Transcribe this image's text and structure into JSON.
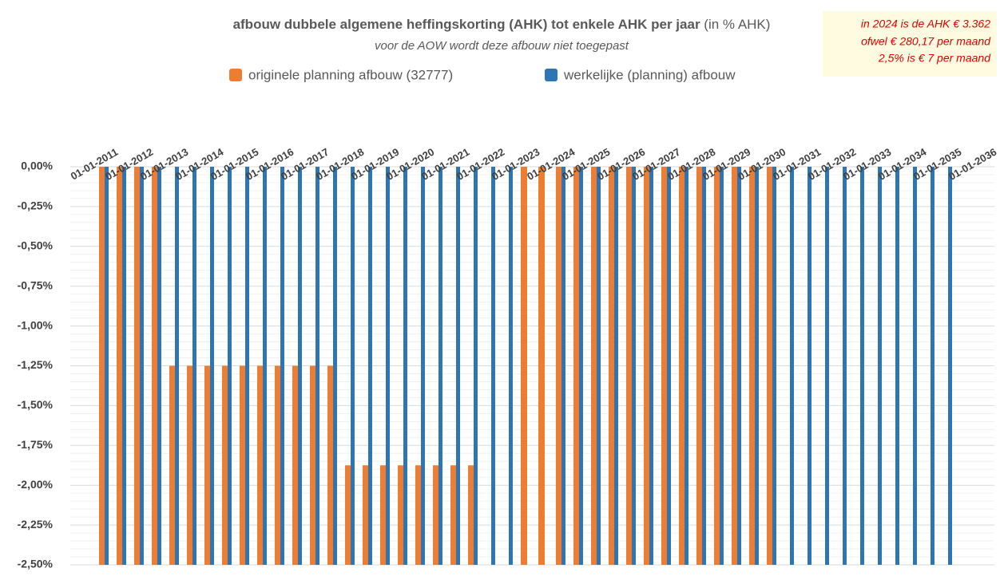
{
  "chart_data": {
    "type": "bar",
    "title": "afbouw dubbele algemene heffingskorting (AHK) tot enkele AHK per jaar",
    "title_suffix": "(in % AHK)",
    "subtitle": "voor de AOW wordt deze afbouw niet toegepast",
    "annotations": [
      "in 2024 is de AHK € 3.362",
      "ofwel € 280,17 per maand",
      "2,5% is € 7 per maand"
    ],
    "categories": [
      "01-01-2011",
      null,
      "01-01-2012",
      null,
      "01-01-2013",
      null,
      "01-01-2014",
      null,
      "01-01-2015",
      null,
      "01-01-2016",
      null,
      "01-01-2017",
      null,
      "01-01-2018",
      null,
      "01-01-2019",
      null,
      "01-01-2020",
      null,
      "01-01-2021",
      null,
      "01-01-2022",
      null,
      "01-01-2023",
      null,
      "01-01-2024",
      null,
      "01-01-2025",
      null,
      "01-01-2026",
      null,
      "01-01-2027",
      null,
      "01-01-2028",
      null,
      "01-01-2029",
      null,
      "01-01-2030",
      null,
      "01-01-2031",
      null,
      "01-01-2032",
      null,
      "01-01-2033",
      null,
      "01-01-2034",
      null,
      "01-01-2035",
      null,
      "01-01-2036"
    ],
    "series": [
      {
        "name": "originele planning afbouw (32777)",
        "color": "#ed7d31",
        "values": [
          0,
          0,
          0,
          0,
          -1.25,
          -1.25,
          -1.25,
          -1.25,
          -1.25,
          -1.25,
          -1.25,
          -1.25,
          -1.25,
          -1.25,
          -1.875,
          -1.875,
          -1.875,
          -1.875,
          -1.875,
          -1.875,
          -1.875,
          -1.875,
          null,
          null,
          0,
          0,
          0,
          0,
          0,
          0,
          0,
          0,
          0,
          0,
          0,
          0,
          0,
          0,
          0,
          null,
          null,
          null,
          null,
          null,
          null,
          null,
          null,
          null,
          null,
          null,
          null
        ]
      },
      {
        "name": "werkelijke (planning) afbouw",
        "color": "#2e75b6",
        "values": [
          0,
          0,
          0,
          0,
          0,
          0,
          0,
          0,
          0,
          0,
          0,
          0,
          0,
          0,
          0,
          0,
          0,
          0,
          0,
          0,
          0,
          0,
          0,
          0,
          null,
          null,
          0,
          0,
          0,
          0,
          0,
          0,
          0,
          0,
          0,
          0,
          0,
          0,
          0,
          0,
          0,
          0,
          0,
          0,
          0,
          0,
          0,
          0,
          0,
          null,
          null
        ]
      }
    ],
    "ylim": [
      -2.5,
      0
    ],
    "yticks": [
      {
        "value": 0,
        "label": "0,00%"
      },
      {
        "value": -0.25,
        "label": "-0,25%"
      },
      {
        "value": -0.5,
        "label": "-0,50%"
      },
      {
        "value": -0.75,
        "label": "-0,75%"
      },
      {
        "value": -1,
        "label": "-1,00%"
      },
      {
        "value": -1.25,
        "label": "-1,25%"
      },
      {
        "value": -1.5,
        "label": "-1,50%"
      },
      {
        "value": -1.75,
        "label": "-1,75%"
      },
      {
        "value": -2,
        "label": "-2,00%"
      },
      {
        "value": -2.25,
        "label": "-2,25%"
      },
      {
        "value": -2.5,
        "label": "-2,50%"
      }
    ],
    "grid": true
  }
}
